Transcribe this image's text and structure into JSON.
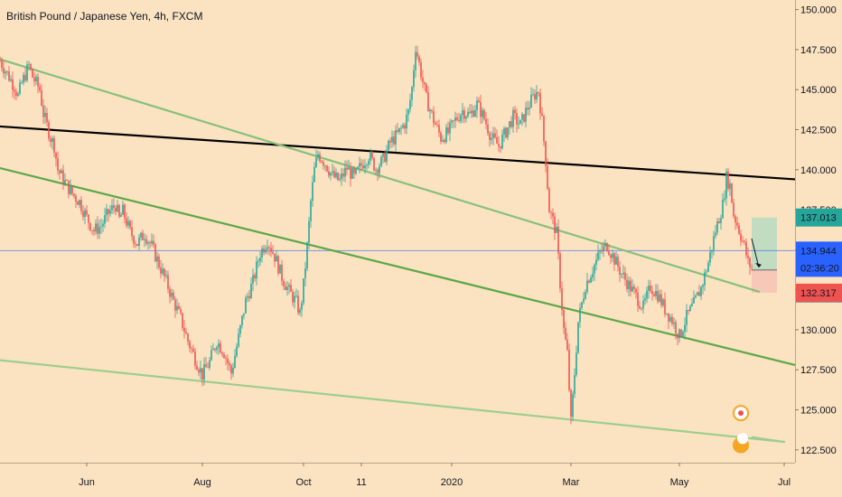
{
  "header": {
    "title": "British Pound / Japanese Yen, 4h, FXCM"
  },
  "chart_data": {
    "type": "candlestick",
    "symbol_title": "British Pound / Japanese Yen, 4h, FXCM",
    "y_axis": {
      "ticks": [
        "150.000",
        "147.500",
        "145.000",
        "142.500",
        "140.000",
        "137.500",
        "135.000",
        "132.500",
        "130.000",
        "127.500",
        "125.000",
        "122.500"
      ],
      "tick_values": [
        150,
        147.5,
        145,
        142.5,
        140,
        137.5,
        135,
        132.5,
        130,
        127.5,
        125,
        122.5
      ],
      "range": [
        121.7,
        150.6
      ]
    },
    "x_axis": {
      "ticks": [
        "Jun",
        "Aug",
        "Oct",
        "11",
        "2020",
        "Mar",
        "May",
        "Jul"
      ]
    },
    "price_labels": [
      {
        "value": "137.013",
        "color": "#26a69a",
        "role": "target"
      },
      {
        "value": "134.944",
        "color": "#2962ff",
        "role": "last-price"
      },
      {
        "value": "02:36:20",
        "color": "#2962ff",
        "role": "countdown"
      },
      {
        "value": "133.740",
        "color": "#787b86",
        "role": "entry"
      },
      {
        "value": "132.317",
        "color": "#ef5350",
        "role": "stop"
      }
    ],
    "trend_lines": [
      {
        "name": "black resistance",
        "color": "#000000",
        "from": [
          "start",
          142.7
        ],
        "to": [
          "end",
          139.4
        ]
      },
      {
        "name": "green upper",
        "color": "#86c17d",
        "from": [
          "start",
          146.9
        ],
        "to": [
          "May",
          133.9
        ]
      },
      {
        "name": "green middle",
        "color": "#5aa848",
        "from": [
          "start",
          140.1
        ],
        "to": [
          "end",
          127.8
        ]
      },
      {
        "name": "green lower",
        "color": "#9ccf8f",
        "from": [
          "start",
          128.1
        ],
        "to": [
          "Jul",
          123.0
        ]
      }
    ],
    "series_path": [
      [
        0,
        146.8
      ],
      [
        2,
        146.0
      ],
      [
        4,
        145.2
      ],
      [
        5,
        144.6
      ],
      [
        6,
        145.4
      ],
      [
        8,
        146.5
      ],
      [
        9,
        145.8
      ],
      [
        11,
        145.0
      ],
      [
        12,
        143.5
      ],
      [
        14,
        142.0
      ],
      [
        15,
        141.5
      ],
      [
        16,
        140.0
      ],
      [
        18,
        139.2
      ],
      [
        20,
        138.5
      ],
      [
        22,
        138.0
      ],
      [
        24,
        137.0
      ],
      [
        26,
        136.2
      ],
      [
        28,
        136.5
      ],
      [
        30,
        137.3
      ],
      [
        32,
        137.8
      ],
      [
        33,
        136.9
      ],
      [
        34,
        137.4
      ],
      [
        36,
        136.1
      ],
      [
        38,
        135.4
      ],
      [
        40,
        136.0
      ],
      [
        42,
        135.2
      ],
      [
        44,
        134.1
      ],
      [
        46,
        133.0
      ],
      [
        48,
        131.8
      ],
      [
        50,
        130.7
      ],
      [
        52,
        129.3
      ],
      [
        54,
        128.2
      ],
      [
        56,
        127.2
      ],
      [
        58,
        128.0
      ],
      [
        60,
        129.3
      ],
      [
        62,
        128.6
      ],
      [
        64,
        127.3
      ],
      [
        66,
        129.5
      ],
      [
        68,
        131.8
      ],
      [
        70,
        133.0
      ],
      [
        72,
        134.8
      ],
      [
        74,
        135.6
      ],
      [
        76,
        134.6
      ],
      [
        78,
        133.3
      ],
      [
        80,
        132.4
      ],
      [
        82,
        131.7
      ],
      [
        83,
        131.0
      ],
      [
        84,
        132.8
      ],
      [
        85,
        135.2
      ],
      [
        86,
        138.0
      ],
      [
        87,
        140.0
      ],
      [
        88,
        141.0
      ],
      [
        90,
        140.4
      ],
      [
        92,
        139.6
      ],
      [
        94,
        139.3
      ],
      [
        96,
        140.1
      ],
      [
        98,
        139.5
      ],
      [
        100,
        140.3
      ],
      [
        102,
        140.9
      ],
      [
        104,
        140.1
      ],
      [
        106,
        140.6
      ],
      [
        108,
        141.7
      ],
      [
        110,
        142.2
      ],
      [
        112,
        142.9
      ],
      [
        113,
        143.6
      ],
      [
        114,
        145.1
      ],
      [
        115,
        147.7
      ],
      [
        116,
        146.6
      ],
      [
        118,
        144.4
      ],
      [
        120,
        143.1
      ],
      [
        122,
        142.0
      ],
      [
        124,
        142.3
      ],
      [
        126,
        143.1
      ],
      [
        128,
        143.7
      ],
      [
        130,
        143.4
      ],
      [
        132,
        144.1
      ],
      [
        134,
        143.2
      ],
      [
        136,
        142.0
      ],
      [
        138,
        141.5
      ],
      [
        140,
        142.4
      ],
      [
        142,
        143.3
      ],
      [
        144,
        142.8
      ],
      [
        146,
        143.9
      ],
      [
        148,
        144.7
      ],
      [
        149,
        144.9
      ],
      [
        150,
        143.0
      ],
      [
        151,
        140.6
      ],
      [
        152,
        137.5
      ],
      [
        153,
        136.8
      ],
      [
        154,
        136.0
      ],
      [
        155,
        132.9
      ],
      [
        156,
        130.0
      ],
      [
        157,
        128.5
      ],
      [
        158,
        124.2
      ],
      [
        159,
        127.3
      ],
      [
        160,
        130.5
      ],
      [
        162,
        132.8
      ],
      [
        164,
        133.8
      ],
      [
        166,
        134.8
      ],
      [
        168,
        135.3
      ],
      [
        170,
        134.4
      ],
      [
        172,
        133.5
      ],
      [
        174,
        132.8
      ],
      [
        176,
        132.1
      ],
      [
        178,
        131.4
      ],
      [
        180,
        132.7
      ],
      [
        182,
        132.2
      ],
      [
        184,
        131.3
      ],
      [
        186,
        130.6
      ],
      [
        188,
        129.6
      ],
      [
        190,
        130.8
      ],
      [
        192,
        131.6
      ],
      [
        194,
        132.6
      ],
      [
        196,
        134.2
      ],
      [
        198,
        136.2
      ],
      [
        200,
        137.8
      ],
      [
        201,
        139.5
      ],
      [
        202,
        139.0
      ],
      [
        203,
        137.2
      ],
      [
        204,
        136.6
      ],
      [
        206,
        135.2
      ],
      [
        207,
        134.2
      ],
      [
        208,
        133.9
      ]
    ],
    "forecast_arrow": {
      "from": [
        208,
        135.7
      ],
      "to": [
        210,
        133.9
      ]
    },
    "x_tick_index": {
      "Jun": 24,
      "Aug": 56,
      "Oct": 84,
      "11": 100,
      "2020": 125,
      "Mar": 158,
      "May": 188,
      "Jul": 217
    },
    "grid": false,
    "colors": {
      "background": "#fbe2c0",
      "candle_up": "#26a69a",
      "candle_down": "#ef5350",
      "last_price_line": "#2962ff",
      "target_zone": "#b7dbc2",
      "stop_zone": "#f6c3b5"
    }
  }
}
